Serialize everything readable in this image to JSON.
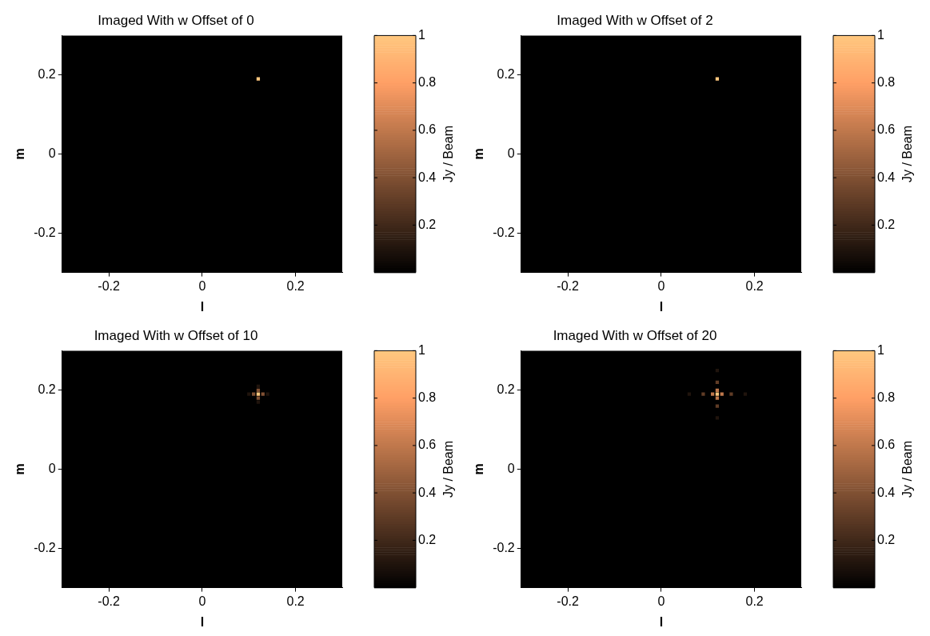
{
  "chart_data": [
    {
      "type": "scatter",
      "title": "Imaged With w Offset of 0",
      "xlabel": "l",
      "ylabel": "m",
      "clabel": "Jy / Beam",
      "xlim": [
        -0.3,
        0.3
      ],
      "ylim": [
        -0.3,
        0.3
      ],
      "xticks": [
        -0.2,
        0,
        0.2
      ],
      "yticks": [
        -0.2,
        0,
        0.2
      ],
      "clim": [
        0,
        1
      ],
      "cticks": [
        0.2,
        0.4,
        0.6,
        0.8,
        1
      ],
      "grid": false,
      "legend": false,
      "marker": "square",
      "x": [
        0.12
      ],
      "values": [
        0.19
      ],
      "cvalues": [
        1
      ]
    },
    {
      "type": "scatter",
      "title": "Imaged With w Offset of 2",
      "xlabel": "l",
      "ylabel": "m",
      "clabel": "Jy / Beam",
      "xlim": [
        -0.3,
        0.3
      ],
      "ylim": [
        -0.3,
        0.3
      ],
      "xticks": [
        -0.2,
        0,
        0.2
      ],
      "yticks": [
        -0.2,
        0,
        0.2
      ],
      "clim": [
        0,
        1
      ],
      "cticks": [
        0.2,
        0.4,
        0.6,
        0.8,
        1
      ],
      "grid": false,
      "legend": false,
      "marker": "square",
      "x": [
        0.12
      ],
      "values": [
        0.19
      ],
      "cvalues": [
        1
      ]
    },
    {
      "type": "scatter",
      "title": "Imaged With w Offset of 10",
      "xlabel": "l",
      "ylabel": "m",
      "clabel": "Jy / Beam",
      "xlim": [
        -0.3,
        0.3
      ],
      "ylim": [
        -0.3,
        0.3
      ],
      "xticks": [
        -0.2,
        0,
        0.2
      ],
      "yticks": [
        -0.2,
        0,
        0.2
      ],
      "clim": [
        0,
        1
      ],
      "cticks": [
        0.2,
        0.4,
        0.6,
        0.8,
        1
      ],
      "grid": false,
      "legend": false,
      "marker": "square",
      "x": [
        0.1,
        0.14,
        0.12,
        0.12,
        0.11,
        0.13,
        0.12,
        0.12,
        0.12
      ],
      "values": [
        0.19,
        0.19,
        0.17,
        0.21,
        0.19,
        0.19,
        0.18,
        0.2,
        0.19
      ],
      "cvalues": [
        0.1,
        0.1,
        0.1,
        0.1,
        0.4,
        0.4,
        0.4,
        0.4,
        1
      ]
    },
    {
      "type": "scatter",
      "title": "Imaged With w Offset of 20",
      "xlabel": "l",
      "ylabel": "m",
      "clabel": "Jy / Beam",
      "xlim": [
        -0.3,
        0.3
      ],
      "ylim": [
        -0.3,
        0.3
      ],
      "xticks": [
        -0.2,
        0,
        0.2
      ],
      "yticks": [
        -0.2,
        0,
        0.2
      ],
      "clim": [
        0,
        1
      ],
      "cticks": [
        0.2,
        0.4,
        0.6,
        0.8,
        1
      ],
      "grid": false,
      "legend": false,
      "marker": "square",
      "x": [
        0.06,
        0.18,
        0.12,
        0.12,
        0.09,
        0.15,
        0.12,
        0.12,
        0.11,
        0.13,
        0.12,
        0.12,
        0.12
      ],
      "values": [
        0.19,
        0.19,
        0.13,
        0.25,
        0.19,
        0.19,
        0.16,
        0.22,
        0.19,
        0.19,
        0.18,
        0.2,
        0.19
      ],
      "cvalues": [
        0.1,
        0.1,
        0.1,
        0.1,
        0.3,
        0.3,
        0.3,
        0.3,
        0.6,
        0.6,
        0.6,
        0.6,
        1
      ]
    }
  ]
}
